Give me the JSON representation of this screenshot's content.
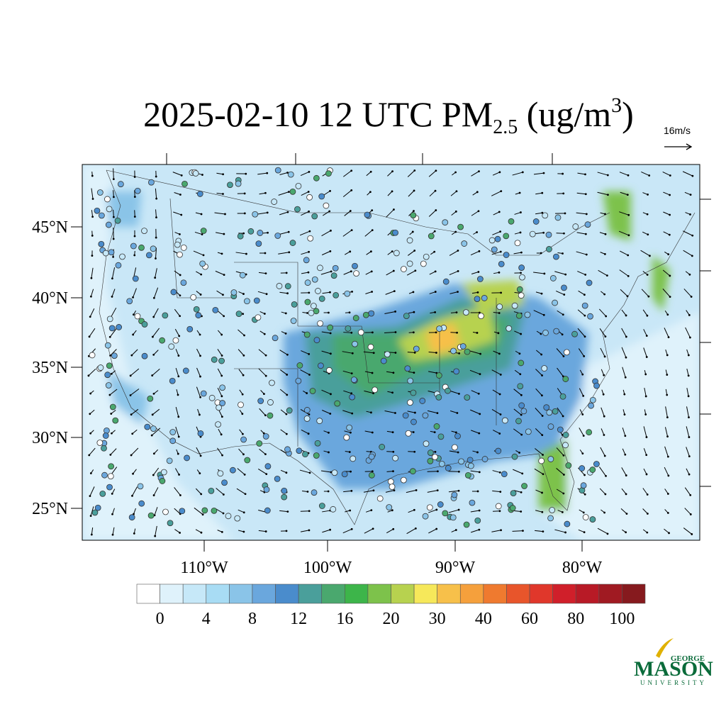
{
  "title": {
    "main": "2025-02-10 12 UTC PM",
    "sub": "2.5",
    "mid": " (ug/m",
    "sup": "3",
    "end": ")"
  },
  "vector_reference": "16m/s",
  "lat_labels": [
    "45°N",
    "40°N",
    "35°N",
    "30°N",
    "25°N"
  ],
  "lon_labels": [
    "110°W",
    "100°W",
    "90°W",
    "80°W"
  ],
  "colorbar": {
    "colors": [
      "#ffffff",
      "#dff2fb",
      "#c6e8f8",
      "#a8dcf4",
      "#8ac4e8",
      "#6aa7dd",
      "#4a8ccc",
      "#4a9f9b",
      "#4aa86e",
      "#3db54a",
      "#7dc24b",
      "#b7d24f",
      "#f6e85a",
      "#f7c04a",
      "#f5a03c",
      "#ef7a2f",
      "#e8552b",
      "#e0372b",
      "#d01f2a",
      "#b81a26",
      "#a01a22",
      "#861a1e"
    ],
    "labels": [
      0,
      4,
      8,
      12,
      16,
      20,
      30,
      40,
      60,
      80,
      100
    ]
  },
  "logo": {
    "top": "GEORGE",
    "main": "MASON",
    "bottom": "UNIVERSITY"
  }
}
